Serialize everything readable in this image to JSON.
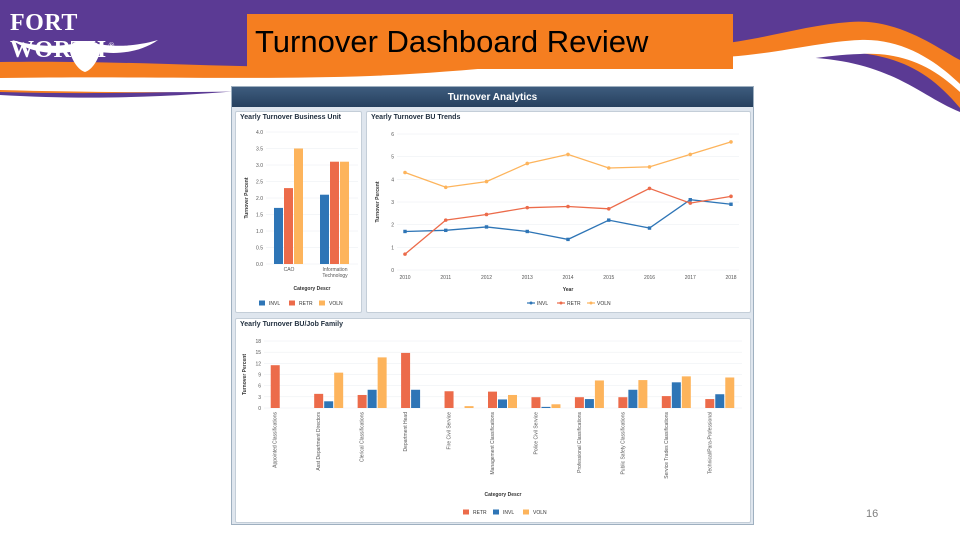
{
  "slide": {
    "title": "Turnover Dashboard Review",
    "page_number": "16",
    "logo_text": "FORT WORTH",
    "logo_mark": "®",
    "colors": {
      "orange": "#f57e20",
      "purple": "#5b3a94",
      "white": "#ffffff"
    }
  },
  "dashboard": {
    "header": "Turnover Analytics",
    "colors": {
      "INVL": "#2e75b6",
      "RETR": "#ec6b4a",
      "VOLN": "#fdb45c"
    }
  },
  "chart_data": [
    {
      "type": "bar",
      "title": "Yearly Turnover Business Unit",
      "xlabel": "Category Descr",
      "ylabel": "Turnover Percent",
      "ylim": [
        0,
        4.0
      ],
      "yticks": [
        "0.0",
        "0.5",
        "1.0",
        "1.5",
        "2.0",
        "2.5",
        "3.0",
        "3.5",
        "4.0"
      ],
      "categories": [
        "CAO",
        "Information Technology"
      ],
      "series": [
        {
          "name": "INVL",
          "values": [
            1.7,
            2.1
          ]
        },
        {
          "name": "RETR",
          "values": [
            2.3,
            3.1
          ]
        },
        {
          "name": "VOLN",
          "values": [
            3.5,
            3.1
          ]
        }
      ],
      "legend": "bottom"
    },
    {
      "type": "line",
      "title": "Yearly Turnover BU Trends",
      "xlabel": "Year",
      "ylabel": "Turnover Percent",
      "ylim": [
        0,
        6
      ],
      "yticks": [
        "0",
        "1",
        "2",
        "3",
        "4",
        "5",
        "6"
      ],
      "x": [
        "2010",
        "2011",
        "2012",
        "2013",
        "2014",
        "2015",
        "2016",
        "2017",
        "2018"
      ],
      "series": [
        {
          "name": "INVL",
          "values": [
            1.7,
            1.75,
            1.9,
            1.7,
            1.35,
            2.2,
            1.85,
            3.1,
            2.9
          ]
        },
        {
          "name": "RETR",
          "values": [
            0.7,
            2.2,
            2.45,
            2.75,
            2.8,
            2.7,
            3.6,
            2.95,
            3.25
          ]
        },
        {
          "name": "VOLN",
          "values": [
            4.3,
            3.65,
            3.9,
            4.7,
            5.1,
            4.5,
            4.55,
            5.1,
            5.65
          ]
        }
      ],
      "legend": "bottom"
    },
    {
      "type": "bar",
      "title": "Yearly Turnover BU/Job Family",
      "xlabel": "Category Descr",
      "ylabel": "Turnover Percent",
      "ylim": [
        0,
        18
      ],
      "yticks": [
        "0",
        "3",
        "6",
        "9",
        "12",
        "15",
        "18"
      ],
      "categories": [
        "Appointed Classifications",
        "Asst Department Directors",
        "Clerical Classifications",
        "Department Head",
        "Fire Civil Service",
        "Management Classifications",
        "Police Civil Service",
        "Professional Classifications",
        "Public Safety Classifications",
        "Service Trades Classifications",
        "Technical/Para-Professional"
      ],
      "series": [
        {
          "name": "RETR",
          "values": [
            11.5,
            3.8,
            3.5,
            14.8,
            4.5,
            4.4,
            2.9,
            2.9,
            2.9,
            3.2,
            2.4
          ]
        },
        {
          "name": "INVL",
          "values": [
            0,
            1.8,
            4.9,
            4.9,
            0,
            2.3,
            0.3,
            2.4,
            4.9,
            6.9,
            3.7
          ]
        },
        {
          "name": "VOLN",
          "values": [
            0,
            9.5,
            13.6,
            0,
            0.5,
            3.5,
            1.0,
            7.4,
            7.5,
            8.5,
            8.2
          ]
        }
      ],
      "legend": "bottom"
    }
  ]
}
